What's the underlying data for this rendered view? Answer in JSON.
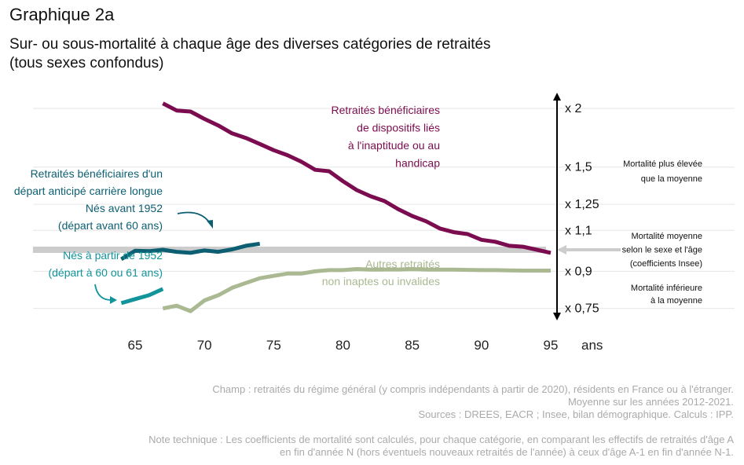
{
  "title": "Graphique 2a",
  "subtitle_line1": "Sur- ou sous-mortalité à chaque âge des diverses catégories de retraités",
  "subtitle_line2": "(tous sexes confondus)",
  "colors": {
    "inaptitude": "#7b0c4f",
    "carriere_longue_avant_1952": "#0c5f72",
    "carriere_longue_apres_1952": "#12949b",
    "autres": "#aab992",
    "reference": "#cccccc",
    "grid": "#e6e6e6",
    "axis": "#000000",
    "footnote": "#aaaaaa"
  },
  "chart_data": {
    "type": "line",
    "title": "",
    "xlabel": "ans",
    "ylabel": "",
    "x_ticks": [
      65,
      70,
      75,
      80,
      85,
      90,
      95
    ],
    "y_scale": "log",
    "ylim": [
      0.66,
      2.3
    ],
    "y_ticks": [
      {
        "value": 2,
        "label": "x 2"
      },
      {
        "value": 1.5,
        "label": "x 1,5"
      },
      {
        "value": 1.25,
        "label": "x 1,25"
      },
      {
        "value": 1.1,
        "label": "x 1,1"
      },
      {
        "value": 0.9,
        "label": "x 0,9"
      },
      {
        "value": 0.75,
        "label": "x 0,75"
      }
    ],
    "reference_value": 1.0,
    "series": [
      {
        "key": "inaptitude",
        "x": [
          67,
          68,
          69,
          70,
          71,
          72,
          73,
          74,
          75,
          76,
          77,
          78,
          79,
          80,
          81,
          82,
          83,
          84,
          85,
          86,
          87,
          88,
          89,
          90,
          91,
          92,
          93,
          94,
          95
        ],
        "values": [
          2.05,
          1.98,
          1.97,
          1.9,
          1.84,
          1.77,
          1.73,
          1.68,
          1.63,
          1.59,
          1.54,
          1.48,
          1.47,
          1.4,
          1.34,
          1.3,
          1.27,
          1.22,
          1.18,
          1.15,
          1.11,
          1.09,
          1.08,
          1.05,
          1.04,
          1.02,
          1.015,
          1.0,
          0.985
        ]
      },
      {
        "key": "carriere_longue_avant_1952",
        "x": [
          64,
          65,
          66,
          67,
          68,
          69,
          70,
          71,
          72,
          73,
          74
        ],
        "values": [
          0.955,
          0.995,
          0.993,
          1.0,
          0.99,
          0.985,
          0.997,
          0.99,
          1.002,
          1.02,
          1.03
        ]
      },
      {
        "key": "carriere_longue_apres_1952",
        "x": [
          64,
          65,
          66,
          67
        ],
        "values": [
          0.77,
          0.785,
          0.8,
          0.825
        ]
      },
      {
        "key": "autres",
        "x": [
          67,
          68,
          69,
          70,
          71,
          72,
          73,
          74,
          75,
          76,
          77,
          78,
          79,
          80,
          81,
          82,
          83,
          84,
          85,
          86,
          87,
          88,
          89,
          90,
          91,
          92,
          93,
          94,
          95
        ],
        "values": [
          0.75,
          0.76,
          0.74,
          0.78,
          0.8,
          0.83,
          0.85,
          0.87,
          0.88,
          0.89,
          0.89,
          0.9,
          0.905,
          0.905,
          0.91,
          0.907,
          0.908,
          0.908,
          0.91,
          0.908,
          0.907,
          0.907,
          0.906,
          0.905,
          0.905,
          0.904,
          0.903,
          0.903,
          0.903
        ]
      }
    ]
  },
  "series_labels": {
    "inaptitude": [
      "Retraités bénéficiaires",
      "de dispositifs liés",
      "à l'inaptitude ou au",
      "handicap"
    ],
    "carriere_longue_header": [
      "Retraités bénéficiaires d'un",
      "départ anticipé carrière longue"
    ],
    "avant_1952": [
      "Nés avant 1952",
      "(départ avant 60 ans)"
    ],
    "apres_1952": [
      "Nés à partir de 1952",
      "(départ à 60 ou 61 ans)"
    ],
    "autres": [
      "Autres retraités",
      "non inaptes ou invalides"
    ]
  },
  "side_labels": {
    "plus_elevee": [
      "Mortalité plus élevée",
      "que la moyenne"
    ],
    "moyenne": [
      "Mortalité moyenne",
      "selon le sexe et l'âge",
      "(coefficients Insee)"
    ],
    "inferieure": [
      "Mortalité inférieure",
      "à la moyenne"
    ]
  },
  "footnotes": {
    "champ": "Champ : retraités du régime général (y compris indépendants à partir de 2020), résidents en France ou à l'étranger.",
    "periode": "Moyenne sur les années 2012-2021.",
    "sources": "Sources : DREES, EACR ; Insee, bilan démographique. Calculs : IPP.",
    "note_line1": "Note technique : Les coefficients de mortalité sont calculés, pour chaque catégorie, en comparant les effectifs de retraités d'âge A",
    "note_line2": "en fin d'année N (hors éventuels nouveaux retraités de l'année) à ceux d'âge A-1 en fin d'année N-1."
  }
}
